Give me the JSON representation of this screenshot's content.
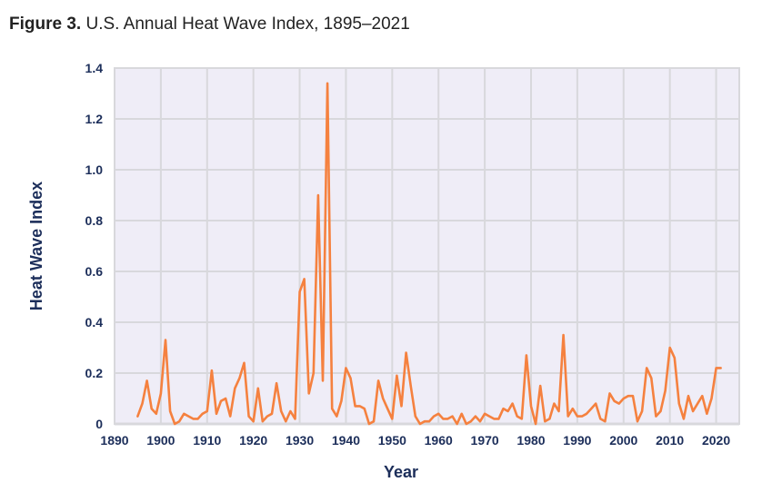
{
  "figure": {
    "label": "Figure 3.",
    "caption": "U.S. Annual Heat Wave Index, 1895–2021"
  },
  "colors": {
    "line": "#f5813f",
    "plot_background": "#efedf7",
    "grid": "#d8d8dc",
    "axis_text": "#1c2e5a"
  },
  "chart_data": {
    "type": "line",
    "title": "U.S. Annual Heat Wave Index, 1895–2021",
    "xlabel": "Year",
    "ylabel": "Heat Wave Index",
    "xlim": [
      1890,
      2025
    ],
    "ylim": [
      0,
      1.4
    ],
    "grid": true,
    "legend": "none",
    "x_ticks": [
      1890,
      1900,
      1910,
      1920,
      1930,
      1940,
      1950,
      1960,
      1970,
      1980,
      1990,
      2000,
      2010,
      2020
    ],
    "y_ticks": [
      0,
      0.2,
      0.4,
      0.6,
      0.8,
      1.0,
      1.2,
      1.4
    ],
    "y_tick_labels": [
      "0",
      "0.2",
      "0.4",
      "0.6",
      "0.8",
      "1.0",
      "1.2",
      "1.4"
    ],
    "series": [
      {
        "name": "Heat Wave Index",
        "x_start": 1895,
        "x_end": 2021,
        "values": [
          0.03,
          0.08,
          0.17,
          0.06,
          0.04,
          0.12,
          0.33,
          0.05,
          0.0,
          0.01,
          0.04,
          0.03,
          0.02,
          0.02,
          0.04,
          0.05,
          0.21,
          0.04,
          0.09,
          0.1,
          0.03,
          0.14,
          0.18,
          0.24,
          0.03,
          0.01,
          0.14,
          0.01,
          0.03,
          0.04,
          0.16,
          0.05,
          0.01,
          0.05,
          0.02,
          0.52,
          0.57,
          0.12,
          0.2,
          0.9,
          0.17,
          1.34,
          0.06,
          0.03,
          0.09,
          0.22,
          0.18,
          0.07,
          0.07,
          0.06,
          0.0,
          0.01,
          0.17,
          0.1,
          0.06,
          0.02,
          0.19,
          0.07,
          0.28,
          0.15,
          0.03,
          0.0,
          0.01,
          0.01,
          0.03,
          0.04,
          0.02,
          0.02,
          0.03,
          0.0,
          0.04,
          0.0,
          0.01,
          0.03,
          0.01,
          0.04,
          0.03,
          0.02,
          0.02,
          0.06,
          0.05,
          0.08,
          0.03,
          0.02,
          0.27,
          0.07,
          0.0,
          0.15,
          0.01,
          0.02,
          0.08,
          0.05,
          0.35,
          0.03,
          0.06,
          0.03,
          0.03,
          0.04,
          0.06,
          0.08,
          0.02,
          0.01,
          0.12,
          0.09,
          0.08,
          0.1,
          0.11,
          0.11,
          0.01,
          0.05,
          0.22,
          0.18,
          0.03,
          0.05,
          0.13,
          0.3,
          0.26,
          0.08,
          0.02,
          0.11,
          0.05,
          0.08,
          0.11,
          0.04,
          0.1,
          0.22,
          0.22
        ]
      }
    ]
  }
}
